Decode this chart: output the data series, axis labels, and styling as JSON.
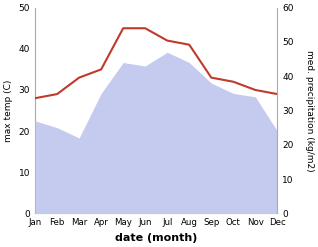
{
  "months": [
    "Jan",
    "Feb",
    "Mar",
    "Apr",
    "May",
    "Jun",
    "Jul",
    "Aug",
    "Sep",
    "Oct",
    "Nov",
    "Dec"
  ],
  "temp_C": [
    28,
    29,
    33,
    35,
    45,
    45,
    42,
    41,
    33,
    32,
    30,
    29
  ],
  "precip_mm": [
    27,
    25,
    22,
    35,
    44,
    43,
    47,
    44,
    38,
    35,
    34,
    24
  ],
  "temp_color": "#c0392b",
  "precip_fill_color": "#c5caef",
  "xlabel": "date (month)",
  "ylabel_left": "max temp (C)",
  "ylabel_right": "med. precipitation (kg/m2)",
  "ylim_left": [
    0,
    50
  ],
  "ylim_right": [
    0,
    60
  ],
  "bg_color": "#ffffff",
  "spine_color": "#aaaaaa"
}
